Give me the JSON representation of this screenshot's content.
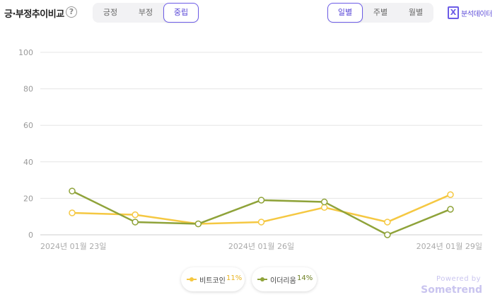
{
  "header": {
    "title": "긍·부정추이비교",
    "help_glyph": "?",
    "sentiment_tabs": [
      "긍정",
      "부정",
      "중립"
    ],
    "sentiment_selected": "중립",
    "period_tabs": [
      "일별",
      "주별",
      "월별"
    ],
    "period_selected": "일별",
    "export_label": "분석데이터",
    "export_glyph": "X"
  },
  "colors": {
    "accent": "#6c5ce7",
    "bitcoin": "#f5c842",
    "ethereum": "#8fa33a",
    "grid": "#e5e5e5"
  },
  "chart_data": {
    "type": "line",
    "x": [
      "2024-01-23",
      "2024-01-24",
      "2024-01-25",
      "2024-01-26",
      "2024-01-27",
      "2024-01-28",
      "2024-01-29"
    ],
    "x_tick_labels": [
      "2024년 01월 23일",
      "2024년 01월 26일",
      "2024년 01월 29일"
    ],
    "x_tick_indices": [
      0,
      3,
      6
    ],
    "y_ticks": [
      0,
      20,
      40,
      60,
      80,
      100
    ],
    "ylim": [
      0,
      100
    ],
    "grid": true,
    "series": [
      {
        "name": "비트코인",
        "color": "#f5c842",
        "values": [
          12,
          11,
          6,
          7,
          15,
          7,
          22
        ]
      },
      {
        "name": "이더리움",
        "color": "#8fa33a",
        "values": [
          24,
          7,
          6,
          19,
          18,
          0,
          14
        ]
      }
    ],
    "legend_position": "bottom-center"
  },
  "legend": [
    {
      "name": "비트코인",
      "pct": "11%"
    },
    {
      "name": "이더리움",
      "pct": "14%"
    }
  ],
  "footer": {
    "powered": "Powered by",
    "brand": "Sometrend"
  }
}
